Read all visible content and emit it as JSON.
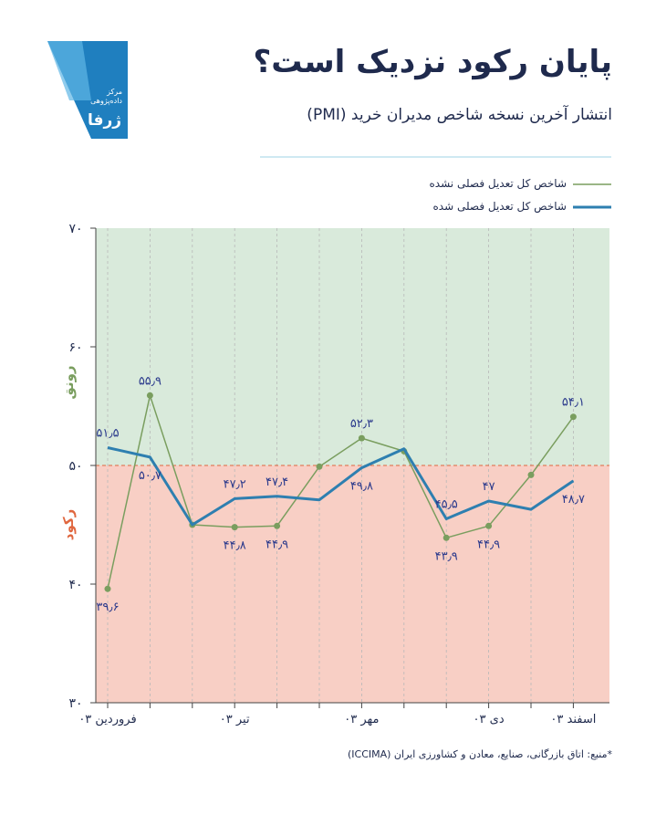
{
  "logo": {
    "line1": "مرکز داده‌پژوهی",
    "name": "ژرفا"
  },
  "source": "*منبع: اتاق بازرگانی، صنایع، معادن و کشاورزی ایران (ICCIMA)",
  "chart_data": {
    "type": "line",
    "title": "پایان رکود نزدیک است؟",
    "subtitle": "انتشار آخرین نسخه شاخص مدیران خرید (PMI)",
    "categories": [
      "فروردین ۰۳",
      null,
      null,
      "تیر ۰۳",
      null,
      null,
      "مهر ۰۳",
      null,
      null,
      "دی ۰۳",
      null,
      "اسفند ۰۳"
    ],
    "series": [
      {
        "name": "شاخص کل تعدیل فصلی نشده",
        "color": "#7a9e5f",
        "values": [
          39.6,
          55.9,
          45.0,
          44.8,
          44.9,
          49.9,
          52.3,
          51.2,
          43.9,
          44.9,
          49.2,
          54.1
        ],
        "value_labels": [
          "۳۹٫۶",
          "۵۵٫۹",
          null,
          "۴۴٫۸",
          "۴۴٫۹",
          null,
          "۵۲٫۳",
          null,
          "۴۳٫۹",
          "۴۴٫۹",
          null,
          "۵۴٫۱"
        ]
      },
      {
        "name": "شاخص کل تعدیل فصلی شده",
        "color": "#2e7fb0",
        "values": [
          51.5,
          50.7,
          45.0,
          47.2,
          47.4,
          47.1,
          49.8,
          51.4,
          45.5,
          47,
          46.3,
          48.7
        ],
        "value_labels": [
          "۵۱٫۵",
          "۵۰٫۷",
          null,
          "۴۷٫۲",
          "۴۷٫۴",
          null,
          "۴۹٫۸",
          null,
          "۴۵٫۵",
          "۴۷",
          null,
          "۴۸٫۷"
        ]
      }
    ],
    "ylim": [
      30,
      70
    ],
    "yticks": [
      {
        "value": 30,
        "label": "۳۰"
      },
      {
        "value": 40,
        "label": "۴۰"
      },
      {
        "value": 50,
        "label": "۵۰"
      },
      {
        "value": 60,
        "label": "۶۰"
      },
      {
        "value": 70,
        "label": "۷۰"
      }
    ],
    "threshold": 50,
    "above_label": "رونق",
    "above_color": "#d9eadb",
    "below_label": "رکود",
    "below_color": "#f8cfc5",
    "grid": true
  }
}
